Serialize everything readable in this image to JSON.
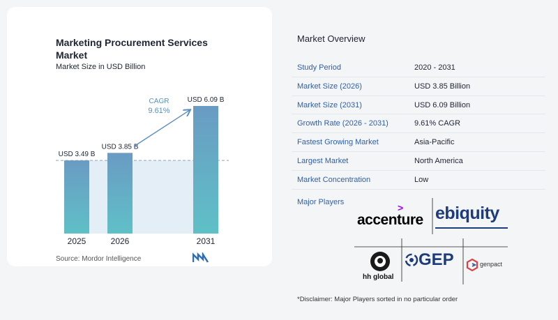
{
  "chart_title": "Marketing Procurement Services Market",
  "chart_subtitle": "Market Size in USD Billion",
  "source": "Source:  Mordor Intelligence",
  "cagr_label": "CAGR",
  "cagr_value": "9.61%",
  "overview_title": "Market Overview",
  "overview": [
    {
      "key": "Study Period",
      "value": "2020 - 2031"
    },
    {
      "key": "Market Size (2026)",
      "value": "USD 3.85 Billion"
    },
    {
      "key": "Market Size (2031)",
      "value": "USD 6.09 Billion"
    },
    {
      "key": "Growth Rate (2026 - 2031)",
      "value": "9.61% CAGR"
    },
    {
      "key": "Fastest Growing Market",
      "value": "Asia-Pacific"
    },
    {
      "key": "Largest Market",
      "value": "North America"
    },
    {
      "key": "Market Concentration",
      "value": "Low"
    }
  ],
  "major_players_label": "Major Players",
  "players": {
    "accenture": "accenture",
    "accenture_mark": ">",
    "ebiquity": "ebiquity",
    "gep": "GEP",
    "hh_global": "hh global",
    "genpact": "genpact"
  },
  "disclaimer": "*Disclaimer: Major Players sorted in no particular order",
  "colors": {
    "bar_top": "#6a9bc3",
    "bar_bottom": "#5fc0c7",
    "shade": "#e3eef6",
    "arrow": "#5a8fbf",
    "label_blue": "#2e5fa8"
  },
  "chart_data": {
    "type": "bar",
    "categories": [
      "2025",
      "2026",
      "2031"
    ],
    "values": [
      3.49,
      3.85,
      6.09
    ],
    "value_labels": [
      "USD 3.49 B",
      "USD 3.85 B",
      "USD 6.09 B"
    ],
    "title": "Marketing Procurement Services Market",
    "subtitle": "Market Size in USD Billion",
    "ylim": [
      0,
      6.09
    ],
    "grid": false,
    "reference_line": 3.49,
    "annotation": "CAGR 9.61%"
  }
}
